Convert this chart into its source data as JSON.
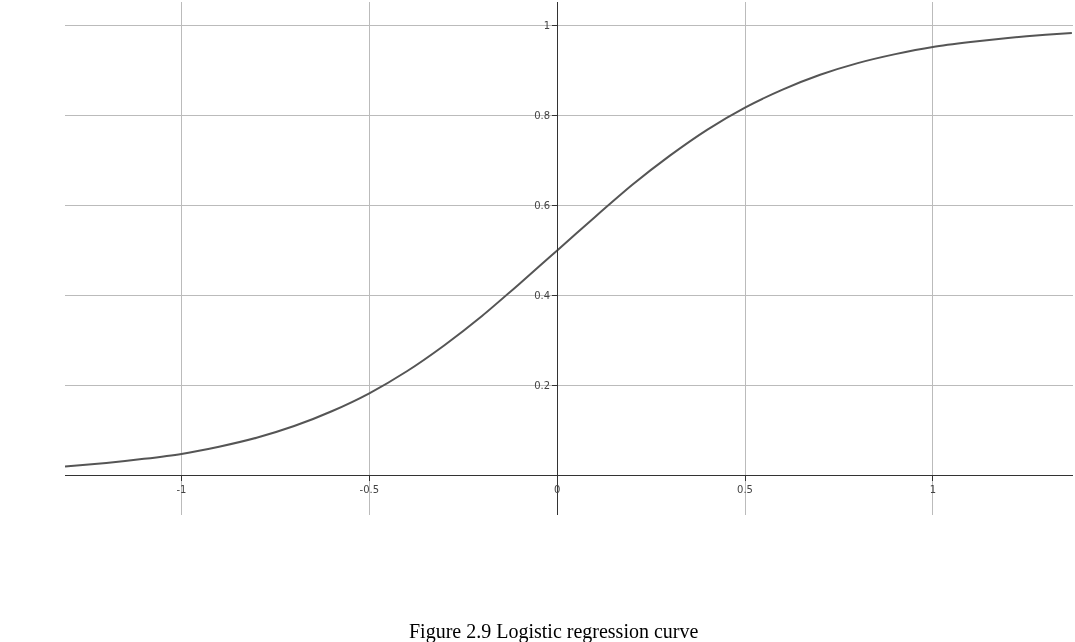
{
  "chart_data": {
    "type": "line",
    "annotations": [
      "Figure 2.9 Logistic regression curve"
    ],
    "x": [
      -1.31,
      -1.2,
      -1.1,
      -1.0,
      -0.9,
      -0.8,
      -0.7,
      -0.6,
      -0.5,
      -0.4,
      -0.3,
      -0.2,
      -0.1,
      0,
      0.1,
      0.2,
      0.3,
      0.4,
      0.5,
      0.6,
      0.7,
      0.8,
      0.9,
      1.0,
      1.1,
      1.2,
      1.3,
      1.37
    ],
    "series": [
      {
        "color": "#555555",
        "values": [
          0.019,
          0.027,
          0.036,
          0.047,
          0.063,
          0.083,
          0.109,
          0.142,
          0.182,
          0.231,
          0.289,
          0.354,
          0.426,
          0.5,
          0.574,
          0.646,
          0.711,
          0.769,
          0.818,
          0.858,
          0.891,
          0.917,
          0.937,
          0.953,
          0.964,
          0.973,
          0.98,
          0.984
        ]
      }
    ],
    "xlim": [
      -1.31,
      1.373
    ],
    "ylim": [
      -0.089,
      1.053
    ],
    "xticks": [
      -1,
      -0.5,
      0,
      0.5,
      1
    ],
    "yticks": [
      0.2,
      0.4,
      0.6,
      0.8,
      1
    ],
    "grid": true,
    "marker": "none",
    "line_style": "solid"
  }
}
